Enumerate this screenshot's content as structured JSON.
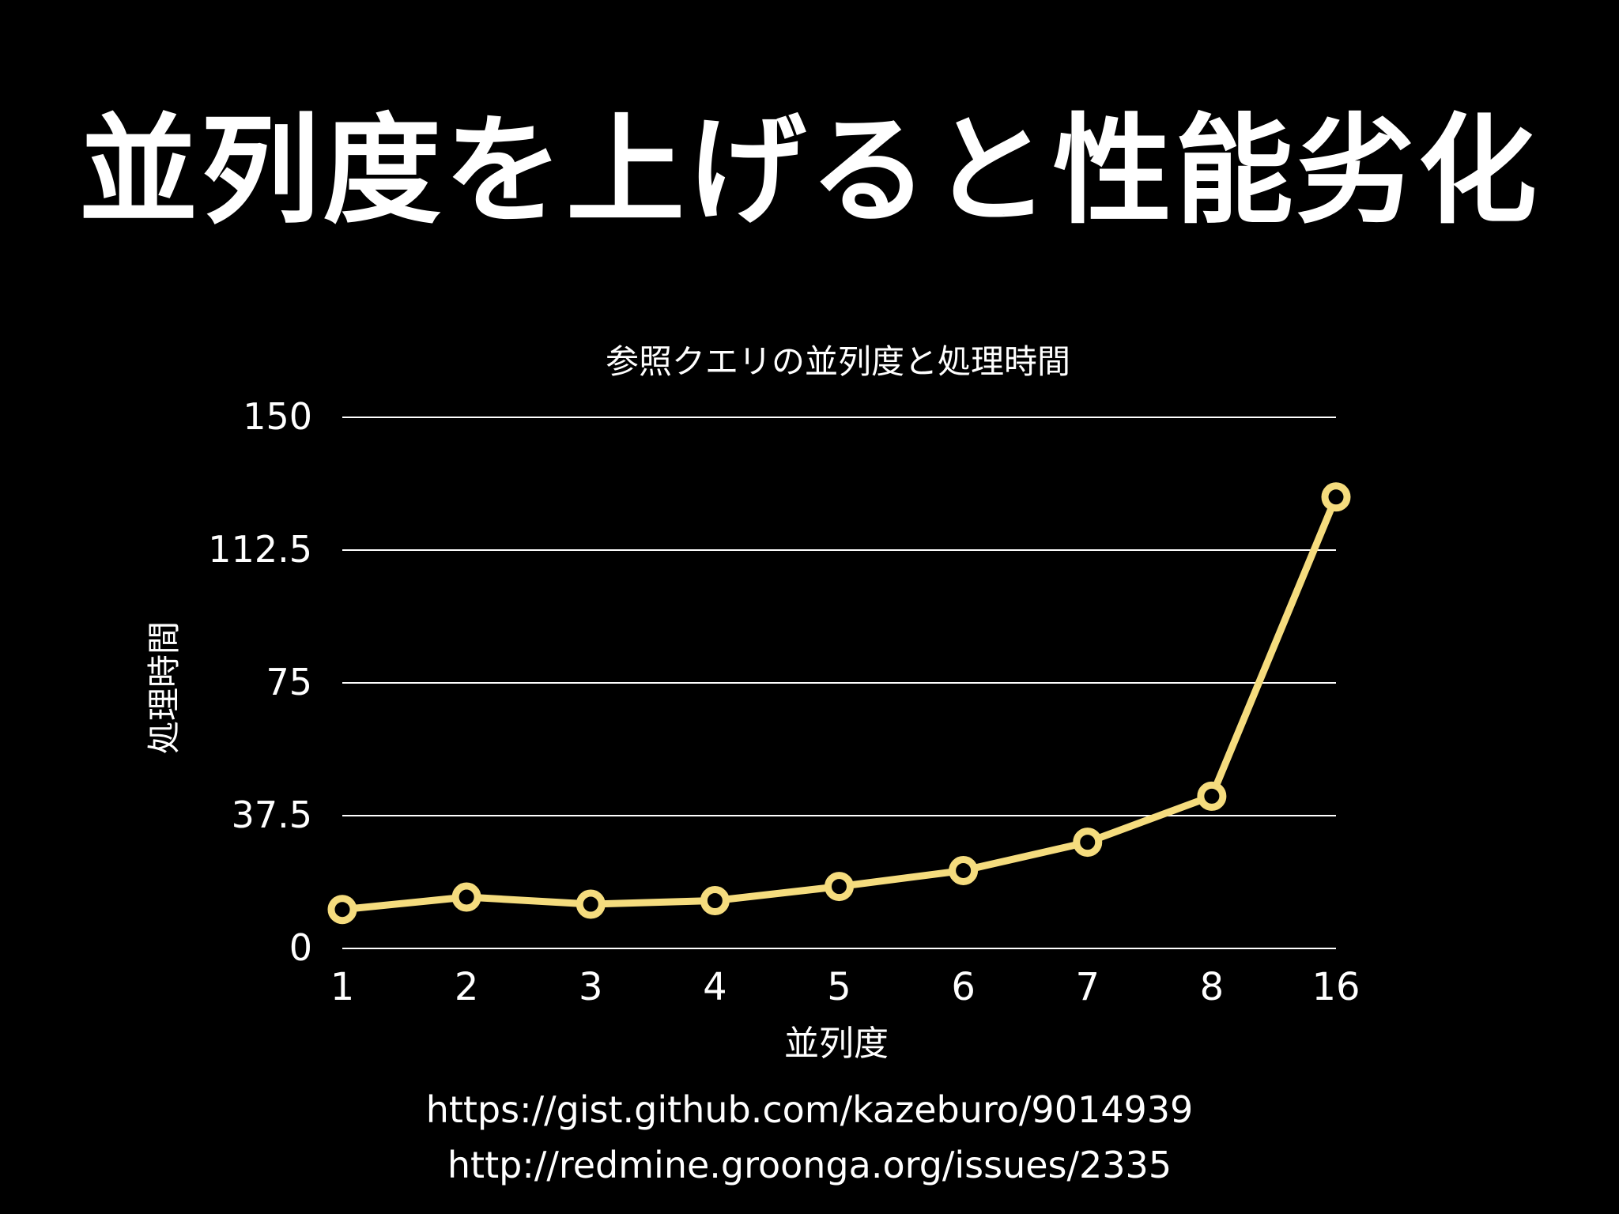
{
  "slide": {
    "title": "並列度を上げると性能劣化",
    "links": [
      "https://gist.github.com/kazeburo/9014939",
      "http://redmine.groonga.org/issues/2335"
    ]
  },
  "chart_data": {
    "type": "line",
    "title": "参照クエリの並列度と処理時間",
    "xlabel": "並列度",
    "ylabel": "処理時間",
    "categories": [
      "1",
      "2",
      "3",
      "4",
      "5",
      "6",
      "7",
      "8",
      "16"
    ],
    "series": [
      {
        "values": [
          11,
          14.5,
          12.5,
          13.5,
          17.5,
          22,
          30,
          43,
          127.5
        ]
      }
    ],
    "ylim": [
      0,
      150
    ],
    "yticks": [
      "0",
      "37.5",
      "75",
      "112.5",
      "150"
    ],
    "ytick_values": [
      0,
      37.5,
      75,
      112.5,
      150
    ],
    "grid": true,
    "legend": "none",
    "colors": {
      "line": "#f5dc7e",
      "marker_fill": "#000000",
      "grid": "#ffffff",
      "text": "#ffffff",
      "background": "#000000"
    }
  }
}
